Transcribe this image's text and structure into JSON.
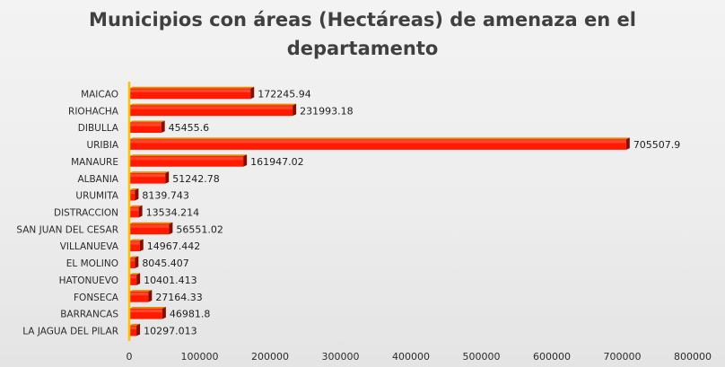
{
  "chart_data": {
    "type": "bar",
    "orientation": "horizontal",
    "title": "Municipios con áreas (Hectáreas) de amenaza en el departamento",
    "categories": [
      "MAICAO",
      "RIOHACHA",
      "DIBULLA",
      "URIBIA",
      "MANAURE",
      "ALBANIA",
      "URUMITA",
      "DISTRACCION",
      "SAN JUAN DEL CESAR",
      "VILLANUEVA",
      "EL MOLINO",
      "HATONUEVO",
      "FONSECA",
      "BARRANCAS",
      "LA JAGUA DEL PILAR"
    ],
    "values": [
      172245.94,
      231993.18,
      45455.6,
      705507.9,
      161947.02,
      51242.78,
      8139.743,
      13534.214,
      56551.02,
      14967.442,
      8045.407,
      10401.413,
      27164.33,
      46981.8,
      10297.013
    ],
    "value_labels": [
      "172245.94",
      "231993.18",
      "45455.6",
      "705507.9",
      "161947.02",
      "51242.78",
      "8139.743",
      "13534.214",
      "56551.02",
      "14967.442",
      "8045.407",
      "10401.413",
      "27164.33",
      "46981.8",
      "10297.013"
    ],
    "xlim": [
      0,
      800000
    ],
    "x_ticks": [
      0,
      100000,
      200000,
      300000,
      400000,
      500000,
      600000,
      700000,
      800000
    ],
    "x_tick_labels": [
      "0",
      "100000",
      "200000",
      "300000",
      "400000",
      "500000",
      "600000",
      "700000",
      "800000"
    ],
    "xlabel": "",
    "ylabel": "",
    "grid": false,
    "legend": "none",
    "bar_color": "#ff1a00",
    "bar_shadow_color": "#8a0c00",
    "bar_top_color": "#e08a00",
    "axis_color": "#ffc000",
    "title_color": "#404040"
  }
}
